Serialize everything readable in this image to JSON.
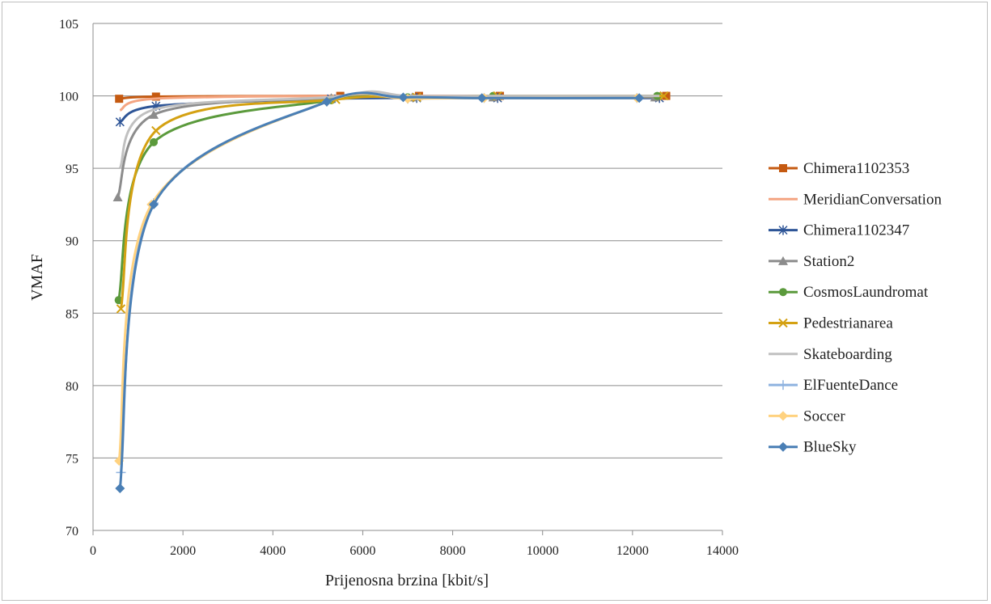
{
  "chart_data": {
    "type": "line",
    "xlabel": "Prijenosna brzina [kbit/s]",
    "ylabel": "VMAF",
    "xlim": [
      0,
      14000
    ],
    "ylim": [
      70,
      105
    ],
    "xticks": [
      "0",
      "2000",
      "4000",
      "6000",
      "8000",
      "10000",
      "12000",
      "14000"
    ],
    "yticks": [
      "70",
      "75",
      "80",
      "85",
      "90",
      "95",
      "100",
      "105"
    ],
    "grid": "horizontal",
    "legend_position": "right",
    "series": [
      {
        "name": "Chimera1102353",
        "color": "#c55a11",
        "marker": "square",
        "points": [
          [
            580,
            99.8
          ],
          [
            1400,
            99.95
          ],
          [
            5500,
            100.0
          ],
          [
            7250,
            100.0
          ],
          [
            9050,
            100.0
          ],
          [
            12750,
            100.0
          ]
        ]
      },
      {
        "name": "MeridianConversation",
        "color": "#f4a582",
        "marker": "none",
        "points": [
          [
            600,
            99.0
          ],
          [
            1350,
            99.8
          ],
          [
            5400,
            100.0
          ],
          [
            7200,
            100.0
          ],
          [
            9000,
            100.0
          ],
          [
            12700,
            100.0
          ]
        ]
      },
      {
        "name": "Chimera1102347",
        "color": "#2e5597",
        "marker": "star",
        "points": [
          [
            600,
            98.2
          ],
          [
            1400,
            99.3
          ],
          [
            5300,
            99.8
          ],
          [
            7200,
            99.85
          ],
          [
            9000,
            99.85
          ],
          [
            12600,
            99.85
          ]
        ]
      },
      {
        "name": "Station2",
        "color": "#8c8c8c",
        "marker": "triangle",
        "points": [
          [
            550,
            93.0
          ],
          [
            1350,
            98.7
          ],
          [
            5300,
            99.85
          ],
          [
            7100,
            99.9
          ],
          [
            8900,
            99.9
          ],
          [
            12500,
            99.9
          ]
        ]
      },
      {
        "name": "CosmosLaundromat",
        "color": "#5b9a3c",
        "marker": "circle",
        "points": [
          [
            570,
            85.9
          ],
          [
            1350,
            96.8
          ],
          [
            5300,
            99.7
          ],
          [
            7000,
            99.9
          ],
          [
            8900,
            100.0
          ],
          [
            12550,
            100.0
          ]
        ]
      },
      {
        "name": "Pedestrianarea",
        "color": "#d4a112",
        "marker": "x",
        "points": [
          [
            620,
            85.3
          ],
          [
            1400,
            97.6
          ],
          [
            5400,
            99.75
          ],
          [
            7200,
            99.9
          ],
          [
            9000,
            100.0
          ],
          [
            12700,
            100.0
          ]
        ]
      },
      {
        "name": "Skateboarding",
        "color": "#c0c0c0",
        "marker": "none",
        "points": [
          [
            600,
            95.0
          ],
          [
            1300,
            99.0
          ],
          [
            5200,
            99.9
          ],
          [
            6200,
            100.3
          ],
          [
            7000,
            100.0
          ],
          [
            9000,
            100.0
          ],
          [
            12600,
            100.0
          ]
        ]
      },
      {
        "name": "ElFuenteDance",
        "color": "#8fb3e0",
        "marker": "plus",
        "points": [
          [
            620,
            74.0
          ],
          [
            1350,
            92.6
          ],
          [
            5200,
            99.6
          ],
          [
            7000,
            99.8
          ],
          [
            8700,
            99.85
          ],
          [
            12100,
            99.85
          ]
        ]
      },
      {
        "name": "Soccer",
        "color": "#ffd27f",
        "marker": "diamond",
        "points": [
          [
            580,
            74.8
          ],
          [
            1300,
            92.5
          ],
          [
            5200,
            99.6
          ],
          [
            7000,
            99.8
          ],
          [
            8700,
            99.85
          ],
          [
            12100,
            99.85
          ]
        ]
      },
      {
        "name": "BlueSky",
        "color": "#4a7fb5",
        "marker": "diamond",
        "points": [
          [
            600,
            72.9
          ],
          [
            1350,
            92.5
          ],
          [
            5200,
            99.6
          ],
          [
            6900,
            99.9
          ],
          [
            8650,
            99.85
          ],
          [
            12150,
            99.85
          ]
        ]
      }
    ]
  }
}
